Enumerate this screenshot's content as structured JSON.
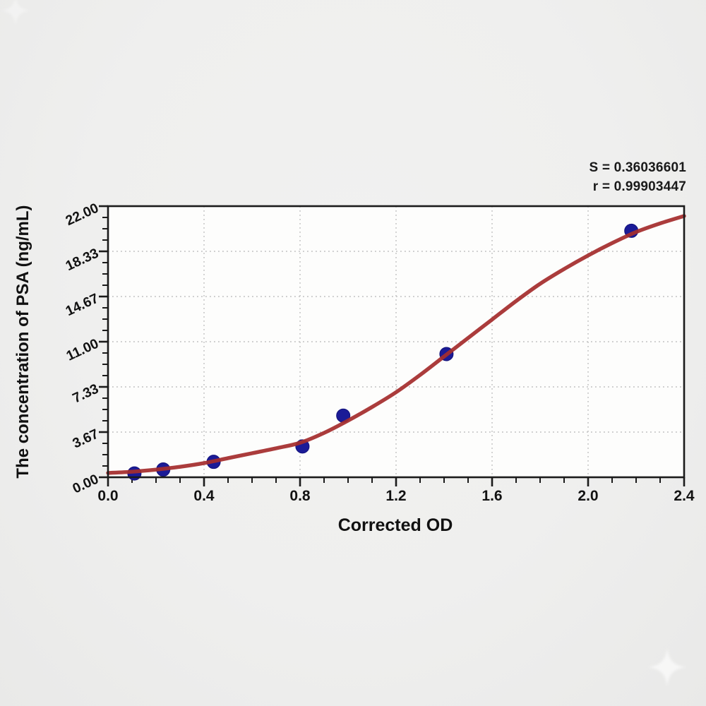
{
  "annotation": {
    "s_line": "S = 0.36036601",
    "r_line": "r = 0.99903447"
  },
  "chart_data": {
    "type": "scatter",
    "title": "",
    "xlabel": "Corrected OD",
    "ylabel": "The concentration of PSA (ng/mL)",
    "xlim": [
      0.0,
      2.4
    ],
    "ylim": [
      0.0,
      22.0
    ],
    "x_tick_values": [
      0.0,
      0.4,
      0.8,
      1.2,
      1.6,
      2.0,
      2.4
    ],
    "x_tick_labels": [
      "0.0",
      "0.4",
      "0.8",
      "1.2",
      "1.6",
      "2.0",
      "2.4"
    ],
    "x_minor_step": 0.1,
    "y_tick_values": [
      0.0,
      3.6667,
      7.3333,
      11.0,
      14.6667,
      18.3333,
      22.0
    ],
    "y_tick_labels": [
      "0.00",
      "3.67",
      "7.33",
      "11.00",
      "14.67",
      "18.33",
      "22.00"
    ],
    "y_minor_step": 0.9167,
    "grid": {
      "show": true,
      "style": "dotted",
      "at": "major-ticks"
    },
    "legend": {
      "show": false
    },
    "series": [
      {
        "name": "standard-points",
        "type": "scatter",
        "points": [
          {
            "x": 0.11,
            "y": 0.31
          },
          {
            "x": 0.23,
            "y": 0.63
          },
          {
            "x": 0.44,
            "y": 1.25
          },
          {
            "x": 0.81,
            "y": 2.5
          },
          {
            "x": 0.98,
            "y": 5.0
          },
          {
            "x": 1.41,
            "y": 10.0
          },
          {
            "x": 2.18,
            "y": 20.0
          }
        ]
      },
      {
        "name": "fit-curve",
        "type": "line",
        "points": [
          [
            0.0,
            0.35
          ],
          [
            0.1,
            0.45
          ],
          [
            0.2,
            0.62
          ],
          [
            0.3,
            0.85
          ],
          [
            0.4,
            1.15
          ],
          [
            0.5,
            1.55
          ],
          [
            0.6,
            1.95
          ],
          [
            0.7,
            2.35
          ],
          [
            0.8,
            2.8
          ],
          [
            0.9,
            3.6
          ],
          [
            1.0,
            4.6
          ],
          [
            1.1,
            5.7
          ],
          [
            1.2,
            6.9
          ],
          [
            1.3,
            8.3
          ],
          [
            1.4,
            9.8
          ],
          [
            1.5,
            11.3
          ],
          [
            1.6,
            12.8
          ],
          [
            1.7,
            14.3
          ],
          [
            1.8,
            15.7
          ],
          [
            1.9,
            16.9
          ],
          [
            2.0,
            18.0
          ],
          [
            2.1,
            19.0
          ],
          [
            2.2,
            19.9
          ],
          [
            2.3,
            20.6
          ],
          [
            2.4,
            21.2
          ]
        ]
      }
    ],
    "stats": {
      "S": 0.36036601,
      "r": 0.99903447
    },
    "colors": {
      "curve": "#a52d2d",
      "point_fill": "#1b1b97",
      "point_edge": "#12127a",
      "axis": "#1b1b1b",
      "grid": "#c6c6c6",
      "plot_background": "#fdfdfc",
      "page_background": "#efefee",
      "text": "#121212"
    }
  },
  "watermark": {
    "icon": "sparkle",
    "color": "#ffffff"
  }
}
